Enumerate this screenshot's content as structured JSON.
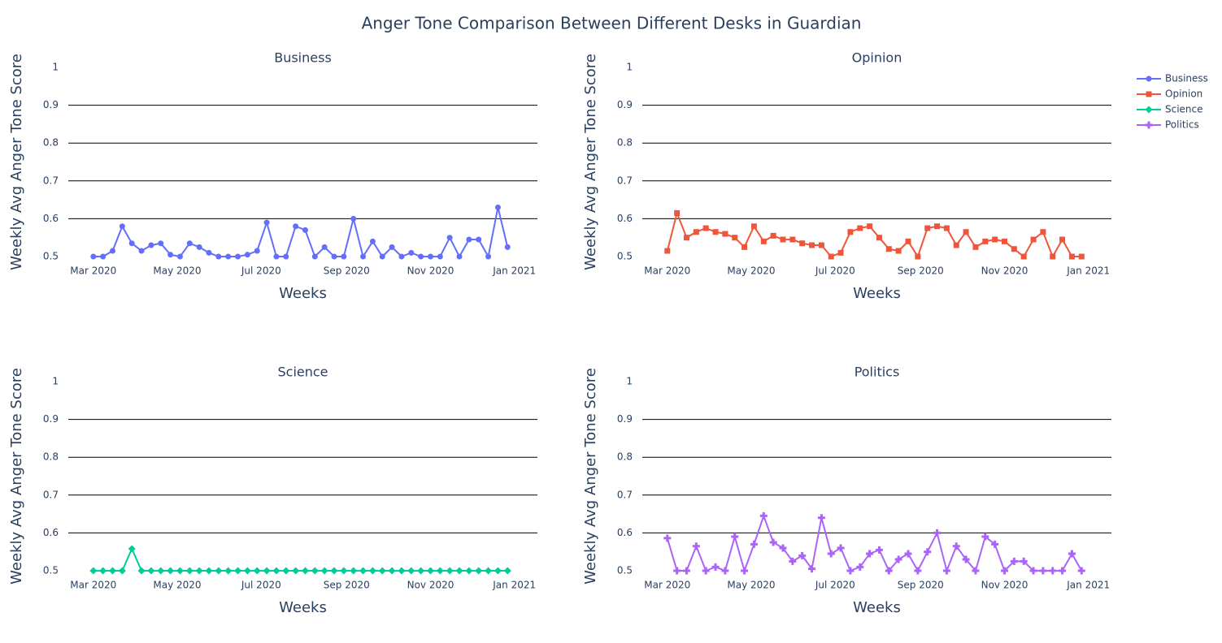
{
  "title": "Anger Tone Comparison Between Different Desks in Guardian",
  "legend": "top-right",
  "chart_data": [
    {
      "type": "line",
      "title": "Business",
      "x_label": "Weeks",
      "y_label": "Weekly Avg Anger Tone Score",
      "categories": [
        null,
        null,
        null,
        null,
        null,
        null,
        null,
        null,
        null,
        null,
        null,
        null,
        null,
        null,
        null,
        null,
        null,
        null,
        null,
        null,
        null,
        null,
        null,
        null,
        null,
        null,
        null,
        null,
        null,
        null,
        null,
        null,
        null,
        null,
        null,
        null,
        null,
        null,
        null,
        null,
        null,
        null,
        null,
        null
      ],
      "xlim": [
        -2.6,
        46.1
      ],
      "xticks": [
        {
          "value": 0,
          "label": "Mar 2020"
        },
        {
          "value": 8.71,
          "label": "May 2020"
        },
        {
          "value": 17.43,
          "label": "Jul 2020"
        },
        {
          "value": 26.29,
          "label": "Sep 2020"
        },
        {
          "value": 35,
          "label": "Nov 2020"
        },
        {
          "value": 43.71,
          "label": "Jan 2021"
        }
      ],
      "ylim": [
        0.5,
        1
      ],
      "yticks": [
        0.5,
        0.6,
        0.7,
        0.8,
        0.9,
        1
      ],
      "grid": true,
      "series": [
        {
          "name": "Business",
          "color": "#636efa",
          "marker": "circle",
          "values": [
            0.5,
            0.5,
            0.515,
            0.58,
            0.535,
            0.515,
            0.53,
            0.535,
            0.505,
            0.5,
            0.535,
            0.525,
            0.51,
            0.5,
            0.5,
            0.5,
            0.505,
            0.515,
            0.59,
            0.5,
            0.5,
            0.58,
            0.57,
            0.5,
            0.525,
            0.5,
            0.5,
            0.6,
            0.5,
            0.54,
            0.5,
            0.525,
            0.5,
            0.51,
            0.5,
            0.5,
            0.5,
            0.55,
            0.5,
            0.545,
            0.545,
            0.5,
            0.63,
            0.525
          ]
        }
      ]
    },
    {
      "type": "line",
      "title": "Opinion",
      "x_label": "Weeks",
      "y_label": "Weekly Avg Anger Tone Score",
      "categories": [
        null,
        null,
        null,
        null,
        null,
        null,
        null,
        null,
        null,
        null,
        null,
        null,
        null,
        null,
        null,
        null,
        null,
        null,
        null,
        null,
        null,
        null,
        null,
        null,
        null,
        null,
        null,
        null,
        null,
        null,
        null,
        null,
        null,
        null,
        null,
        null,
        null,
        null,
        null,
        null,
        null,
        null,
        null,
        null
      ],
      "xlim": [
        -2.6,
        46.1
      ],
      "xticks": [
        {
          "value": 0,
          "label": "Mar 2020"
        },
        {
          "value": 8.71,
          "label": "May 2020"
        },
        {
          "value": 17.43,
          "label": "Jul 2020"
        },
        {
          "value": 26.29,
          "label": "Sep 2020"
        },
        {
          "value": 35,
          "label": "Nov 2020"
        },
        {
          "value": 43.71,
          "label": "Jan 2021"
        }
      ],
      "ylim": [
        0.5,
        1
      ],
      "yticks": [
        0.5,
        0.6,
        0.7,
        0.8,
        0.9,
        1
      ],
      "grid": true,
      "series": [
        {
          "name": "Opinion",
          "color": "#EF553B",
          "marker": "square",
          "values": [
            0.515,
            0.615,
            0.55,
            0.565,
            0.575,
            0.565,
            0.56,
            0.55,
            0.525,
            0.58,
            0.54,
            0.555,
            0.545,
            0.545,
            0.535,
            0.53,
            0.53,
            0.5,
            0.51,
            0.565,
            0.575,
            0.58,
            0.55,
            0.52,
            0.515,
            0.54,
            0.5,
            0.575,
            0.58,
            0.575,
            0.53,
            0.565,
            0.525,
            0.54,
            0.545,
            0.54,
            0.52,
            0.5,
            0.545,
            0.565,
            0.5,
            0.545,
            0.5,
            0.5
          ]
        }
      ]
    },
    {
      "type": "line",
      "title": "Science",
      "x_label": "Weeks",
      "y_label": "Weekly Avg Anger Tone Score",
      "categories": [
        null,
        null,
        null,
        null,
        null,
        null,
        null,
        null,
        null,
        null,
        null,
        null,
        null,
        null,
        null,
        null,
        null,
        null,
        null,
        null,
        null,
        null,
        null,
        null,
        null,
        null,
        null,
        null,
        null,
        null,
        null,
        null,
        null,
        null,
        null,
        null,
        null,
        null,
        null,
        null,
        null,
        null,
        null,
        null
      ],
      "xlim": [
        -2.6,
        46.1
      ],
      "xticks": [
        {
          "value": 0,
          "label": "Mar 2020"
        },
        {
          "value": 8.71,
          "label": "May 2020"
        },
        {
          "value": 17.43,
          "label": "Jul 2020"
        },
        {
          "value": 26.29,
          "label": "Sep 2020"
        },
        {
          "value": 35,
          "label": "Nov 2020"
        },
        {
          "value": 43.71,
          "label": "Jan 2021"
        }
      ],
      "ylim": [
        0.5,
        1
      ],
      "yticks": [
        0.5,
        0.6,
        0.7,
        0.8,
        0.9,
        1
      ],
      "grid": true,
      "series": [
        {
          "name": "Science",
          "color": "#00cc96",
          "marker": "diamond",
          "values": [
            0.5,
            0.5,
            0.5,
            0.5,
            0.558,
            0.5,
            0.5,
            0.5,
            0.5,
            0.5,
            0.5,
            0.5,
            0.5,
            0.5,
            0.5,
            0.5,
            0.5,
            0.5,
            0.5,
            0.5,
            0.5,
            0.5,
            0.5,
            0.5,
            0.5,
            0.5,
            0.5,
            0.5,
            0.5,
            0.5,
            0.5,
            0.5,
            0.5,
            0.5,
            0.5,
            0.5,
            0.5,
            0.5,
            0.5,
            0.5,
            0.5,
            0.5,
            0.5,
            0.5
          ]
        }
      ]
    },
    {
      "type": "line",
      "title": "Politics",
      "x_label": "Weeks",
      "y_label": "Weekly Avg Anger Tone Score",
      "categories": [
        null,
        null,
        null,
        null,
        null,
        null,
        null,
        null,
        null,
        null,
        null,
        null,
        null,
        null,
        null,
        null,
        null,
        null,
        null,
        null,
        null,
        null,
        null,
        null,
        null,
        null,
        null,
        null,
        null,
        null,
        null,
        null,
        null,
        null,
        null,
        null,
        null,
        null,
        null,
        null,
        null,
        null,
        null,
        null
      ],
      "xlim": [
        -2.6,
        46.1
      ],
      "xticks": [
        {
          "value": 0,
          "label": "Mar 2020"
        },
        {
          "value": 8.71,
          "label": "May 2020"
        },
        {
          "value": 17.43,
          "label": "Jul 2020"
        },
        {
          "value": 26.29,
          "label": "Sep 2020"
        },
        {
          "value": 35,
          "label": "Nov 2020"
        },
        {
          "value": 43.71,
          "label": "Jan 2021"
        }
      ],
      "ylim": [
        0.5,
        1
      ],
      "yticks": [
        0.5,
        0.6,
        0.7,
        0.8,
        0.9,
        1
      ],
      "grid": true,
      "series": [
        {
          "name": "Politics",
          "color": "#ab63fa",
          "marker": "cross",
          "values": [
            0.586,
            0.5,
            0.5,
            0.565,
            0.5,
            0.51,
            0.5,
            0.59,
            0.5,
            0.57,
            0.645,
            0.575,
            0.56,
            0.525,
            0.54,
            0.505,
            0.64,
            0.545,
            0.56,
            0.5,
            0.51,
            0.545,
            0.555,
            0.5,
            0.53,
            0.545,
            0.5,
            0.55,
            0.6,
            0.5,
            0.565,
            0.53,
            0.5,
            0.59,
            0.57,
            0.5,
            0.525,
            0.525,
            0.5,
            0.5,
            0.5,
            0.5,
            0.545,
            0.5
          ]
        }
      ]
    }
  ]
}
